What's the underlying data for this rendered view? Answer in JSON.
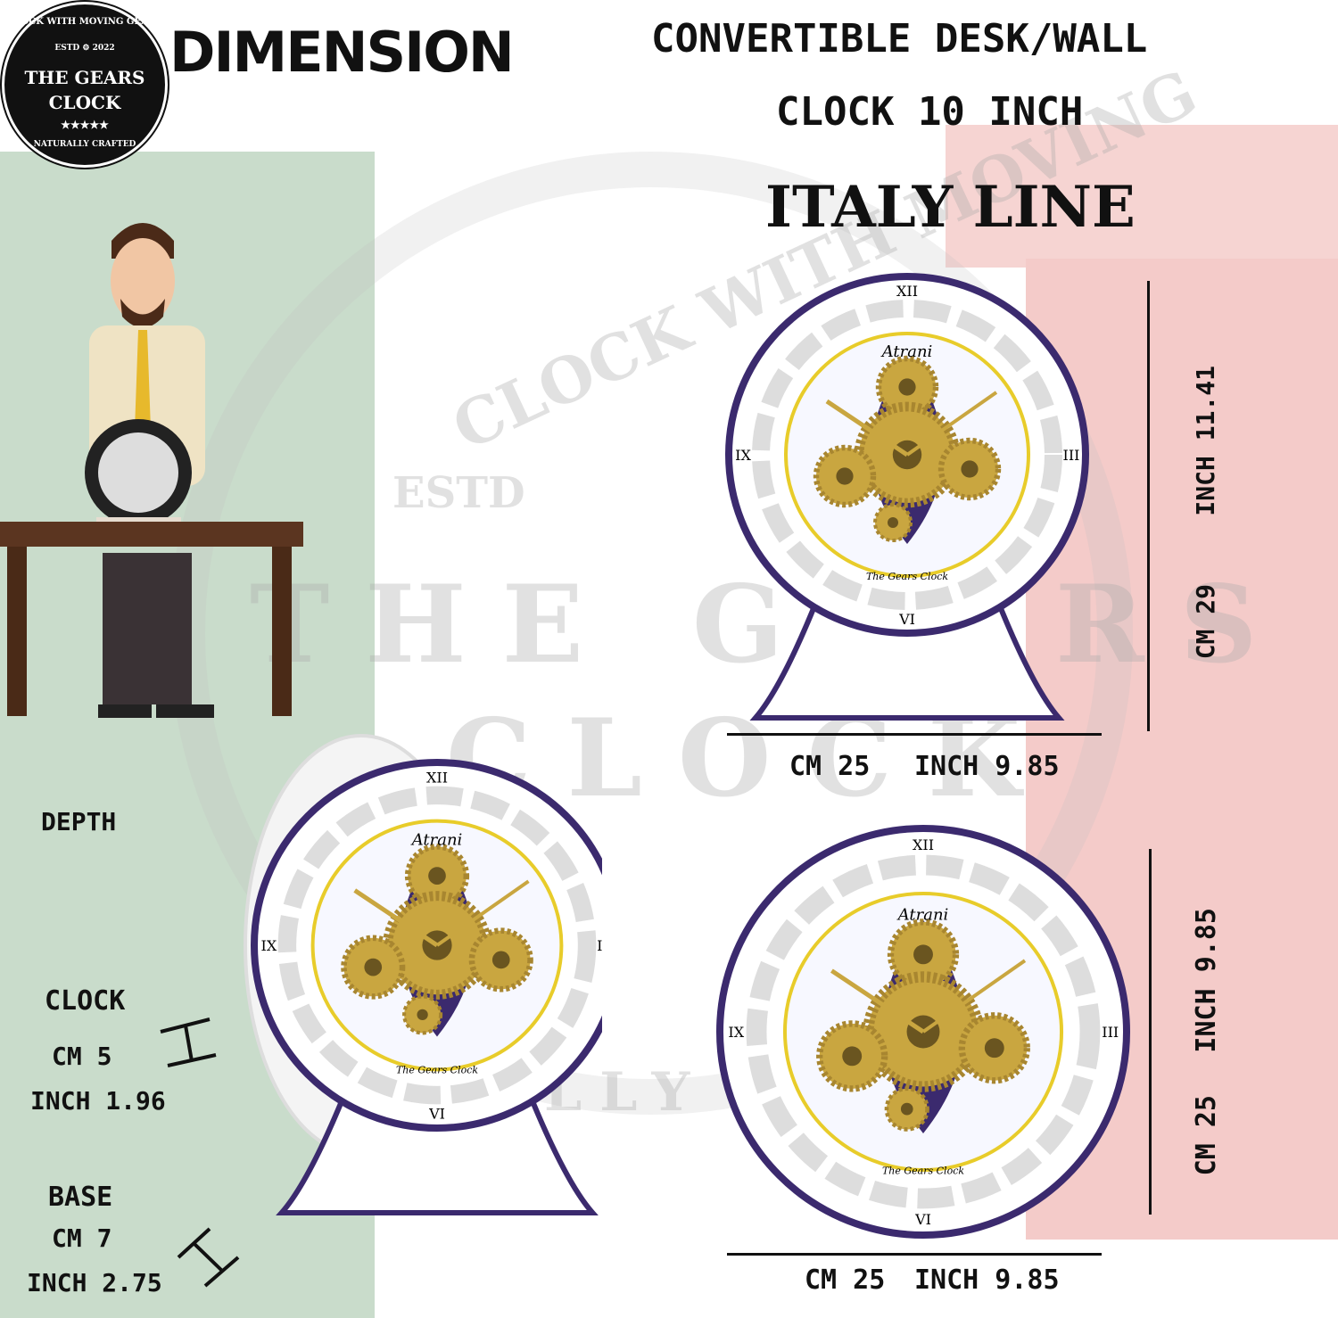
{
  "logo": {
    "arc_top": "CLOCK WITH MOVING GEARS",
    "estd": "ESTD",
    "year": "2022",
    "line1": "THE GEARS",
    "line2": "CLOCK",
    "stars": "★★★★★",
    "arc_bottom": "NATURALLY CRAFTED"
  },
  "title": "DIMENSION",
  "heading": {
    "line1": "CONVERTIBLE DESK/WALL",
    "line2": "CLOCK 10 INCH",
    "subtitle": "ITALY LINE"
  },
  "watermark": {
    "arc": "CLOCK WITH MOVING",
    "estd": "ESTD",
    "name": "THE GEARS",
    "clock": "CLOCK",
    "bottom": "LLY"
  },
  "desk_clock": {
    "height_inch": "INCH 11.41",
    "height_cm": "CM 29",
    "width_cm": "CM 25",
    "width_inch": "INCH 9.85",
    "face_brand": "Atrani",
    "face_maker": "The Gears Clock"
  },
  "wall_clock": {
    "height_inch": "INCH 9.85",
    "height_cm": "CM 25",
    "width_cm": "CM 25",
    "width_inch": "INCH 9.85",
    "face_brand": "Atrani",
    "face_maker": "The Gears Clock"
  },
  "depth": {
    "label": "DEPTH",
    "clock_label": "CLOCK",
    "clock_cm": "CM 5",
    "clock_inch": "INCH 1.96",
    "base_label": "BASE",
    "base_cm": "CM 7",
    "base_inch": "INCH 2.75"
  },
  "colors": {
    "green": "#c9dccb",
    "pink": "#f4cbc9",
    "purple": "#3b2a6e",
    "gold": "#c9a640",
    "yellow": "#e8cc2a"
  }
}
